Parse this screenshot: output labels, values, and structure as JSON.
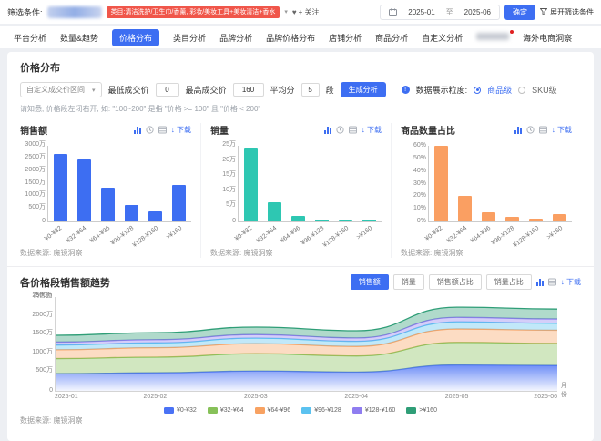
{
  "filter_bar": {
    "label": "筛选条件:",
    "tag_text": "类目:清洁洗护/卫生巾/香薰, 彩妆/美妆工具+美妆清洁+香水",
    "follow_label": "+ 关注",
    "date_start": "2025-01",
    "date_to": "至",
    "date_end": "2025-06",
    "confirm_button": "确定",
    "expand_label": "展开筛选条件"
  },
  "nav": {
    "tabs": [
      {
        "label": "平台分析"
      },
      {
        "label": "数量&趋势"
      },
      {
        "label": "价格分布",
        "active": true
      },
      {
        "label": "类目分析"
      },
      {
        "label": "品牌分析"
      },
      {
        "label": "品牌价格分布"
      },
      {
        "label": "店铺分析"
      },
      {
        "label": "商品分析"
      },
      {
        "label": "自定义分析"
      },
      {
        "label": "",
        "blurred": true,
        "badge": true
      },
      {
        "label": "海外电商洞察"
      }
    ]
  },
  "section": {
    "title": "价格分布",
    "range_select": "自定义成交价区间",
    "min_label": "最低成交价",
    "min_value": "0",
    "max_label": "最高成交价",
    "max_value": "160",
    "split_label": "平均分",
    "split_value": "5",
    "split_unit": "段",
    "generate_button": "生成分析",
    "granularity_label": "数据展示粒度:",
    "granularity_options": [
      "商品级",
      "SKU级"
    ],
    "note": "请知悉, 价格段左闭右开, 如: \"100~200\" 是指 \"价格 >= 100\" 且 \"价格 < 200\"",
    "source": "数据来源: 魔镜洞察",
    "download_label": "下载"
  },
  "trend_section": {
    "title": "各价格段销售额趋势",
    "toggle_buttons": [
      "销售额",
      "销量",
      "销售额占比",
      "销量占比"
    ],
    "active_toggle": "销售额",
    "ylabel": "销售额",
    "xlabel": "月份",
    "download_label": "下载",
    "source": "数据来源: 魔镜洞察"
  },
  "colors": {
    "accent": "#3d6ef2",
    "tag_red": "#f0564a",
    "bar_blue": "#3d6ef2",
    "bar_teal": "#2ec7b2",
    "bar_orange": "#fa9f62"
  },
  "chart_data": [
    {
      "type": "bar",
      "title": "销售额",
      "categories": [
        "¥0-¥32",
        "¥32-¥64",
        "¥64-¥96",
        "¥96-¥128",
        "¥128-¥160",
        ">¥160"
      ],
      "values": [
        2690,
        2450,
        1320,
        640,
        410,
        1430
      ],
      "unit": "万",
      "ymax": 3000,
      "ystep": 500,
      "color": "#3d6ef2"
    },
    {
      "type": "bar",
      "title": "销量",
      "categories": [
        "¥0-¥32",
        "¥32-¥64",
        "¥64-¥96",
        "¥96-¥128",
        "¥128-¥160",
        ">¥160"
      ],
      "values": [
        24.3,
        6.2,
        1.9,
        0.7,
        0.25,
        0.5
      ],
      "unit": "万",
      "ymax": 25,
      "ystep": 5,
      "color": "#2ec7b2"
    },
    {
      "type": "bar",
      "title": "商品数量占比",
      "categories": [
        "¥0-¥32",
        "¥32-¥64",
        "¥64-¥96",
        "¥96-¥128",
        "¥128-¥160",
        ">¥160"
      ],
      "values": [
        60,
        20,
        7.3,
        3.7,
        2.2,
        5.9
      ],
      "unit": "%",
      "ymax": 60,
      "ystep": 10,
      "color": "#fa9f62"
    },
    {
      "type": "area",
      "title": "各价格段销售额趋势",
      "x": [
        "2025-01",
        "2025-02",
        "2025-03",
        "2025-04",
        "2025-05",
        "2025-06"
      ],
      "unit": "万",
      "ymax": 2500,
      "ystep": 500,
      "ylabel": "销售额",
      "xlabel": "月份",
      "legend_position": "bottom",
      "series": [
        {
          "name": "¥0-¥32",
          "color": "#4a72f5",
          "values": [
            460,
            480,
            530,
            500,
            690,
            675
          ]
        },
        {
          "name": "¥32-¥64",
          "color": "#87c159",
          "values": [
            400,
            420,
            460,
            430,
            600,
            590
          ]
        },
        {
          "name": "¥64-¥96",
          "color": "#f8a262",
          "values": [
            235,
            250,
            270,
            255,
            360,
            350
          ]
        },
        {
          "name": "¥96-¥128",
          "color": "#5bc2f0",
          "values": [
            125,
            130,
            145,
            135,
            190,
            185
          ]
        },
        {
          "name": "¥128-¥160",
          "color": "#8f7df0",
          "values": [
            80,
            85,
            95,
            90,
            120,
            115
          ]
        },
        {
          "name": ">¥160",
          "color": "#2f9e77",
          "values": [
            180,
            185,
            200,
            190,
            270,
            265
          ]
        }
      ]
    }
  ]
}
